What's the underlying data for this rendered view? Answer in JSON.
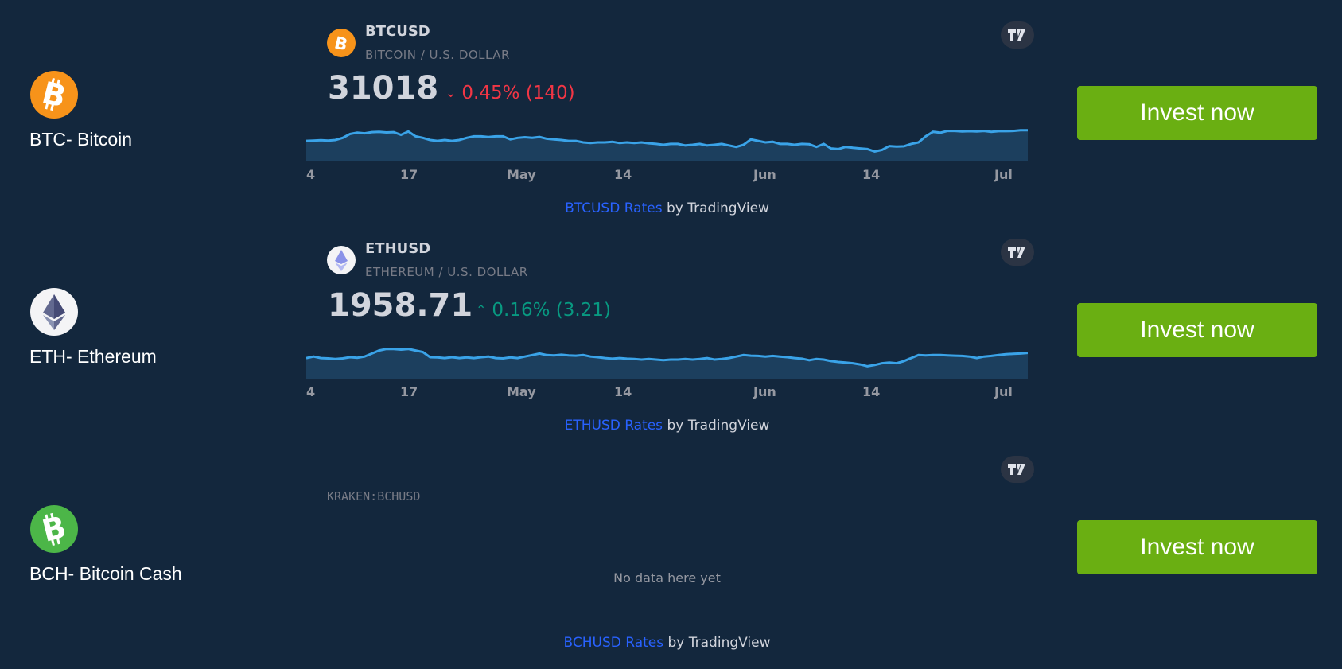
{
  "rows": [
    {
      "coin_label": "BTC- Bitcoin",
      "logo_color": "#f7931a",
      "logo_icon": "bitcoin-icon",
      "widget": {
        "symbol": "BTCUSD",
        "description": "BITCOIN / U.S. DOLLAR",
        "price": "31018",
        "change": "0.45% (140)",
        "change_direction": "down",
        "change_color": "#f23645",
        "x_ticks": [
          "4",
          "17",
          "May",
          "14",
          "Jun",
          "14",
          "Jul"
        ],
        "attribution_link": "BTCUSD Rates",
        "attribution_suffix": " by TradingView"
      },
      "button_label": "Invest now"
    },
    {
      "coin_label": "ETH- Ethereum",
      "logo_color": "#f4f4f6",
      "logo_icon": "ethereum-icon",
      "widget": {
        "symbol": "ETHUSD",
        "description": "ETHEREUM / U.S. DOLLAR",
        "price": "1958.71",
        "change": "0.16% (3.21)",
        "change_direction": "up",
        "change_color": "#089981",
        "x_ticks": [
          "4",
          "17",
          "May",
          "14",
          "Jun",
          "14",
          "Jul"
        ],
        "attribution_link": "ETHUSD Rates",
        "attribution_suffix": " by TradingView"
      },
      "button_label": "Invest now"
    },
    {
      "coin_label": "BCH- Bitcoin Cash",
      "logo_color": "#4cb648",
      "logo_icon": "bitcoin-cash-icon",
      "widget": {
        "exchange_symbol": "KRAKEN:BCHUSD",
        "no_data": "No data here yet",
        "attribution_link": "BCHUSD Rates",
        "attribution_suffix": " by TradingView"
      },
      "button_label": "Invest now"
    }
  ],
  "colors": {
    "background": "#13273d",
    "button": "#6aaf12",
    "line": "#3aa3e8",
    "area": "#1c3f5e",
    "link": "#2962ff"
  }
}
